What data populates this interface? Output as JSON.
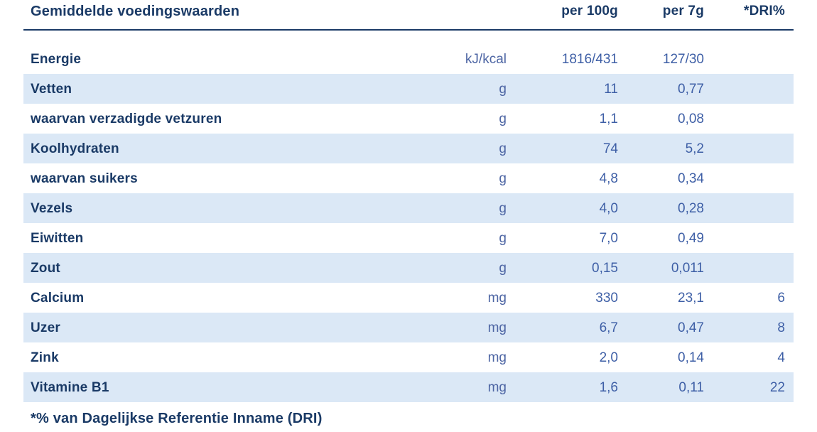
{
  "table": {
    "title": "Gemiddelde voedingswaarden",
    "columns": {
      "per100g": "per 100g",
      "per7g": "per 7g",
      "dri": "*DRI%"
    },
    "rows": [
      {
        "label": "Energie",
        "unit": "kJ/kcal",
        "per100g": "1816/431",
        "per7g": "127/30",
        "dri": "",
        "shaded": false
      },
      {
        "label": "Vetten",
        "unit": "g",
        "per100g": "11",
        "per7g": "0,77",
        "dri": "",
        "shaded": true
      },
      {
        "label": "waarvan verzadigde vetzuren",
        "unit": "g",
        "per100g": "1,1",
        "per7g": "0,08",
        "dri": "",
        "shaded": false
      },
      {
        "label": "Koolhydraten",
        "unit": "g",
        "per100g": "74",
        "per7g": "5,2",
        "dri": "",
        "shaded": true
      },
      {
        "label": "waarvan suikers",
        "unit": "g",
        "per100g": "4,8",
        "per7g": "0,34",
        "dri": "",
        "shaded": false
      },
      {
        "label": "Vezels",
        "unit": "g",
        "per100g": "4,0",
        "per7g": "0,28",
        "dri": "",
        "shaded": true
      },
      {
        "label": "Eiwitten",
        "unit": "g",
        "per100g": "7,0",
        "per7g": "0,49",
        "dri": "",
        "shaded": false
      },
      {
        "label": "Zout",
        "unit": "g",
        "per100g": "0,15",
        "per7g": "0,011",
        "dri": "",
        "shaded": true
      },
      {
        "label": "Calcium",
        "unit": "mg",
        "per100g": "330",
        "per7g": "23,1",
        "dri": "6",
        "shaded": false
      },
      {
        "label": "Uzer",
        "unit": "mg",
        "per100g": "6,7",
        "per7g": "0,47",
        "dri": "8",
        "shaded": true
      },
      {
        "label": "Zink",
        "unit": "mg",
        "per100g": "2,0",
        "per7g": "0,14",
        "dri": "4",
        "shaded": false
      },
      {
        "label": "Vitamine B1",
        "unit": "mg",
        "per100g": "1,6",
        "per7g": "0,11",
        "dri": "22",
        "shaded": true
      }
    ],
    "footnote": "*% van Dagelijkse Referentie Inname (DRI)"
  },
  "colors": {
    "navy": "#1a3a66",
    "value_blue": "#3e5fa6",
    "unit_blue": "#4e66a4",
    "row_band": "#dbe8f6",
    "background": "#ffffff"
  }
}
